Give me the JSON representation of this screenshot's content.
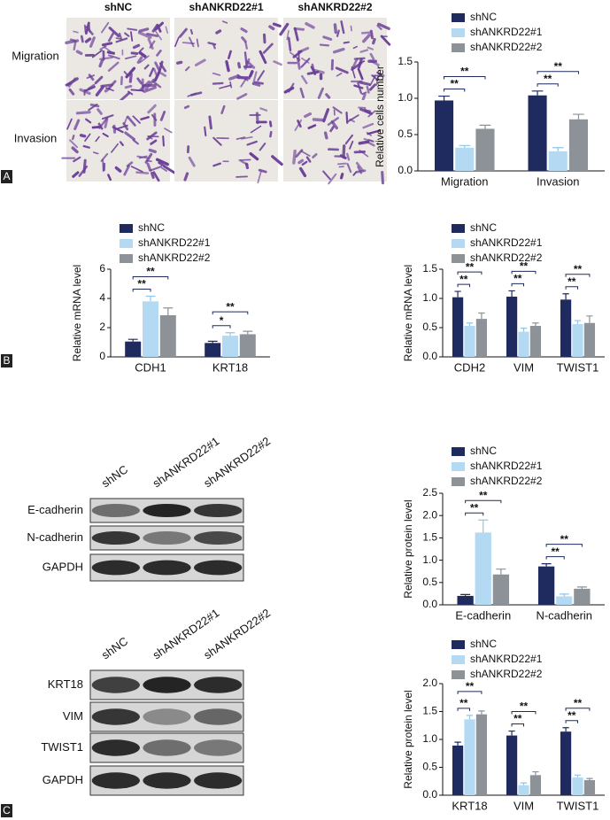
{
  "figure": {
    "panel_labels": [
      "A",
      "B",
      "C"
    ],
    "micrographs": {
      "columns": [
        "shNC",
        "shANKRD22#1",
        "shANKRD22#2"
      ],
      "rows": [
        "Migration",
        "Invasion"
      ]
    },
    "blots": [
      {
        "columns": [
          "shNC",
          "shANKRD22#1",
          "shANKRD22#2"
        ],
        "rows": [
          "E-cadherin",
          "N-cadherin",
          "GAPDH"
        ]
      },
      {
        "columns": [
          "shNC",
          "shANKRD22#1",
          "shANKRD22#2"
        ],
        "rows": [
          "KRT18",
          "VIM",
          "TWIST1",
          "GAPDH"
        ]
      }
    ]
  },
  "chart_data": [
    {
      "type": "bar",
      "y_label": "Relative cells number",
      "categories": [
        "Migration",
        "Invasion"
      ],
      "series": [
        {
          "name": "shNC",
          "color": "#1f2a5e",
          "values": [
            0.97,
            1.04
          ],
          "errors": [
            0.06,
            0.06
          ]
        },
        {
          "name": "shANKRD22#1",
          "color": "#b3daf2",
          "values": [
            0.32,
            0.27
          ],
          "errors": [
            0.03,
            0.05
          ]
        },
        {
          "name": "shANKRD22#2",
          "color": "#8c9297",
          "values": [
            0.58,
            0.71
          ],
          "errors": [
            0.05,
            0.07
          ]
        }
      ],
      "significance": [
        {
          "category": 0,
          "series": [
            0,
            1
          ],
          "label": "**"
        },
        {
          "category": 0,
          "series": [
            0,
            2
          ],
          "label": "**"
        },
        {
          "category": 1,
          "series": [
            0,
            1
          ],
          "label": "**"
        },
        {
          "category": 1,
          "series": [
            0,
            2
          ],
          "label": "**"
        }
      ],
      "ylim": [
        0,
        1.5
      ],
      "yticks": [
        {
          "value": 0,
          "label": "0.0"
        },
        0.5,
        {
          "value": 1,
          "label": "1.0"
        },
        1.5
      ]
    },
    {
      "type": "bar",
      "y_label": "Relative mRNA level",
      "categories": [
        "CDH1",
        "KRT18"
      ],
      "series": [
        {
          "name": "shNC",
          "color": "#1f2a5e",
          "values": [
            1.05,
            0.95
          ],
          "errors": [
            0.15,
            0.12
          ]
        },
        {
          "name": "shANKRD22#1",
          "color": "#b3daf2",
          "values": [
            3.8,
            1.45
          ],
          "errors": [
            0.35,
            0.2
          ]
        },
        {
          "name": "shANKRD22#2",
          "color": "#8c9297",
          "values": [
            2.85,
            1.55
          ],
          "errors": [
            0.5,
            0.2
          ]
        }
      ],
      "significance": [
        {
          "category": 0,
          "series": [
            0,
            1
          ],
          "label": "**"
        },
        {
          "category": 0,
          "series": [
            0,
            2
          ],
          "label": "**"
        },
        {
          "category": 1,
          "series": [
            0,
            1
          ],
          "label": "*"
        },
        {
          "category": 1,
          "series": [
            0,
            2
          ],
          "label": "**"
        }
      ],
      "ylim": [
        0,
        6
      ],
      "yticks": [
        0,
        2,
        4,
        6
      ]
    },
    {
      "type": "bar",
      "y_label": "Relative mRNA level",
      "categories": [
        "CDH2",
        "VIM",
        "TWIST1"
      ],
      "series": [
        {
          "name": "shNC",
          "color": "#1f2a5e",
          "values": [
            1.02,
            1.03,
            0.98
          ],
          "errors": [
            0.1,
            0.1,
            0.1
          ]
        },
        {
          "name": "shANKRD22#1",
          "color": "#b3daf2",
          "values": [
            0.53,
            0.43,
            0.56
          ],
          "errors": [
            0.05,
            0.06,
            0.06
          ]
        },
        {
          "name": "shANKRD22#2",
          "color": "#8c9297",
          "values": [
            0.65,
            0.53,
            0.58
          ],
          "errors": [
            0.1,
            0.05,
            0.12
          ]
        }
      ],
      "significance": [
        {
          "category": 0,
          "series": [
            0,
            1
          ],
          "label": "**"
        },
        {
          "category": 0,
          "series": [
            0,
            2
          ],
          "label": "**"
        },
        {
          "category": 1,
          "series": [
            0,
            1
          ],
          "label": "**"
        },
        {
          "category": 1,
          "series": [
            0,
            2
          ],
          "label": "**"
        },
        {
          "category": 2,
          "series": [
            0,
            1
          ],
          "label": "**"
        },
        {
          "category": 2,
          "series": [
            0,
            2
          ],
          "label": "**"
        }
      ],
      "ylim": [
        0,
        1.5
      ],
      "yticks": [
        {
          "value": 0,
          "label": "0.0"
        },
        0.5,
        {
          "value": 1,
          "label": "1.0"
        },
        1.5
      ]
    },
    {
      "type": "bar",
      "y_label": "Relative protein level",
      "categories": [
        "E-cadherin",
        "N-cadherin"
      ],
      "series": [
        {
          "name": "shNC",
          "color": "#1f2a5e",
          "values": [
            0.2,
            0.86
          ],
          "errors": [
            0.03,
            0.06
          ]
        },
        {
          "name": "shANKRD22#1",
          "color": "#b3daf2",
          "values": [
            1.62,
            0.19
          ],
          "errors": [
            0.28,
            0.05
          ]
        },
        {
          "name": "shANKRD22#2",
          "color": "#8c9297",
          "values": [
            0.68,
            0.36
          ],
          "errors": [
            0.12,
            0.04
          ]
        }
      ],
      "significance": [
        {
          "category": 0,
          "series": [
            0,
            1
          ],
          "label": "**"
        },
        {
          "category": 0,
          "series": [
            0,
            2
          ],
          "label": "**"
        },
        {
          "category": 1,
          "series": [
            0,
            1
          ],
          "label": "**"
        },
        {
          "category": 1,
          "series": [
            0,
            2
          ],
          "label": "**"
        }
      ],
      "ylim": [
        0,
        2.5
      ],
      "yticks": [
        {
          "value": 0,
          "label": "0.0"
        },
        0.5,
        {
          "value": 1,
          "label": "1.0"
        },
        1.5,
        {
          "value": 2,
          "label": "2.0"
        },
        2.5
      ]
    },
    {
      "type": "bar",
      "y_label": "Relative protein level",
      "categories": [
        "KRT18",
        "VIM",
        "TWIST1"
      ],
      "series": [
        {
          "name": "shNC",
          "color": "#1f2a5e",
          "values": [
            0.89,
            1.07,
            1.14
          ],
          "errors": [
            0.06,
            0.08,
            0.07
          ]
        },
        {
          "name": "shANKRD22#1",
          "color": "#b3daf2",
          "values": [
            1.36,
            0.18,
            0.32
          ],
          "errors": [
            0.07,
            0.04,
            0.04
          ]
        },
        {
          "name": "shANKRD22#2",
          "color": "#8c9297",
          "values": [
            1.45,
            0.36,
            0.27
          ],
          "errors": [
            0.06,
            0.06,
            0.03
          ]
        }
      ],
      "significance": [
        {
          "category": 0,
          "series": [
            0,
            1
          ],
          "label": "**"
        },
        {
          "category": 0,
          "series": [
            0,
            2
          ],
          "label": "**"
        },
        {
          "category": 1,
          "series": [
            0,
            1
          ],
          "label": "**"
        },
        {
          "category": 1,
          "series": [
            0,
            2
          ],
          "label": "**"
        },
        {
          "category": 2,
          "series": [
            0,
            1
          ],
          "label": "**"
        },
        {
          "category": 2,
          "series": [
            0,
            2
          ],
          "label": "**"
        }
      ],
      "ylim": [
        0,
        2
      ],
      "yticks": [
        {
          "value": 0,
          "label": "0.0"
        },
        0.5,
        {
          "value": 1,
          "label": "1.0"
        },
        1.5,
        {
          "value": 2,
          "label": "2.0"
        }
      ]
    }
  ]
}
